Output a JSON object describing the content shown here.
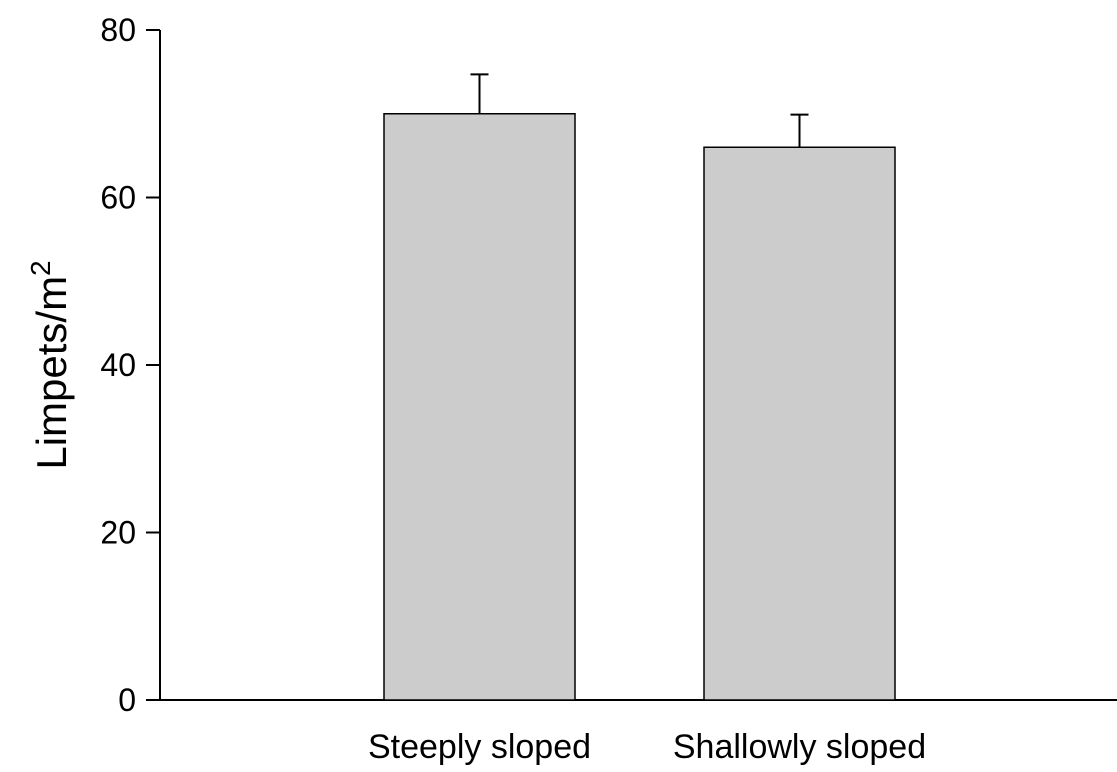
{
  "chart_data": {
    "type": "bar",
    "categories": [
      "Steeply sloped",
      "Shallowly sloped"
    ],
    "values": [
      70,
      66
    ],
    "error_upper": [
      74.7,
      69.9
    ],
    "ylabel": "Limpets/m",
    "ylabel_superscript": "2",
    "xlabel": "",
    "title": "",
    "ylim": [
      0,
      80
    ],
    "yticks": [
      "0",
      "20",
      "40",
      "60",
      "80"
    ],
    "grid": false,
    "colors": {
      "bar_fill": "#cccccc",
      "bar_stroke": "#000000",
      "axis": "#000000"
    }
  }
}
